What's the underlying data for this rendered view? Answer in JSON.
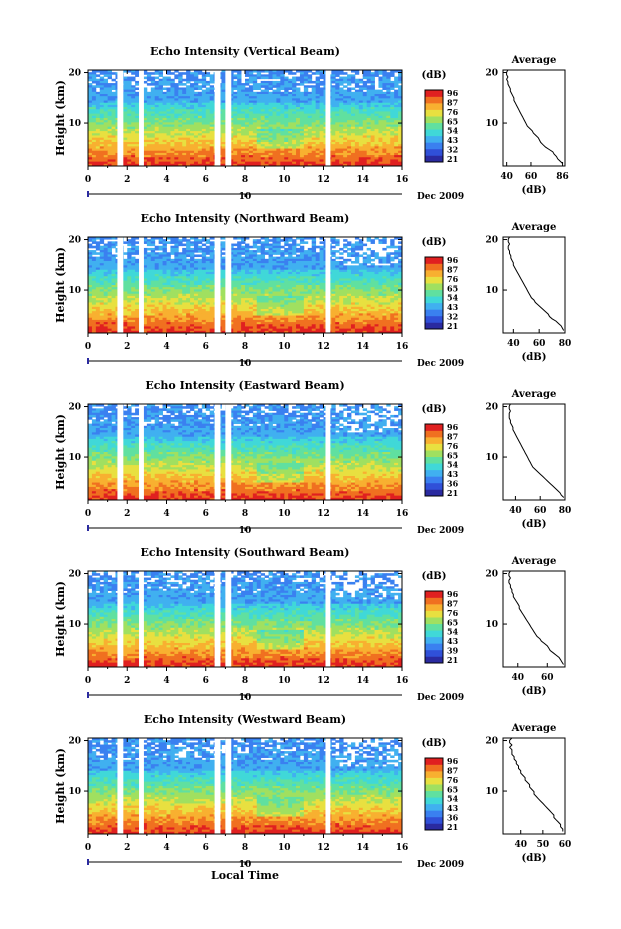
{
  "figure": {
    "xlabel": "Local Time",
    "date_label": "Dec 2009",
    "day_tick_label": "10",
    "colorbar_unit": "(dB)",
    "profile_title": "Average",
    "profile_xlabel": "(dB)"
  },
  "chart_data": [
    {
      "type": "heatmap",
      "title": "Echo Intensity (Vertical Beam)",
      "ylabel": "Height (km)",
      "xticks": [
        "0",
        "2",
        "4",
        "6",
        "8",
        "10",
        "12",
        "14",
        "16"
      ],
      "xlim": [
        0,
        16
      ],
      "yticks": [
        "10",
        "20"
      ],
      "ylim": [
        1.5,
        20.5
      ],
      "data_gaps_hours": [
        [
          1.5,
          1.8
        ],
        [
          2.6,
          2.85
        ],
        [
          6.45,
          6.75
        ],
        [
          7.0,
          7.3
        ],
        [
          12.1,
          12.35
        ]
      ],
      "colorbar_ticks": [
        "96",
        "87",
        "76",
        "65",
        "54",
        "43",
        "32",
        "21"
      ],
      "profile": {
        "title": "Average",
        "xlabel": "(dB)",
        "xticks": [
          "40",
          "60",
          "86"
        ],
        "xlim": [
          37,
          88
        ],
        "ylim": [
          1.5,
          20.5
        ],
        "yticks": [
          "10",
          "20"
        ],
        "values": [
          86,
          84,
          82,
          81,
          79,
          78,
          75,
          72,
          70,
          68,
          67,
          66,
          64,
          62,
          61,
          59,
          57,
          56,
          55,
          54,
          53,
          52,
          51,
          50,
          49,
          48,
          47,
          46,
          46,
          45,
          44,
          43,
          43,
          42,
          41,
          41,
          40,
          41,
          40,
          40,
          41
        ]
      }
    },
    {
      "type": "heatmap",
      "title": "Echo Intensity (Northward Beam)",
      "ylabel": "Height (km)",
      "xticks": [
        "0",
        "2",
        "4",
        "6",
        "8",
        "10",
        "12",
        "14",
        "16"
      ],
      "xlim": [
        0,
        16
      ],
      "yticks": [
        "10",
        "20"
      ],
      "ylim": [
        1.5,
        20.5
      ],
      "data_gaps_hours": [
        [
          1.5,
          1.8
        ],
        [
          2.6,
          2.85
        ],
        [
          6.45,
          6.75
        ],
        [
          7.0,
          7.3
        ],
        [
          12.1,
          12.35
        ]
      ],
      "colorbar_ticks": [
        "96",
        "87",
        "76",
        "65",
        "54",
        "43",
        "32",
        "21"
      ],
      "profile": {
        "title": "Average",
        "xlabel": "(dB)",
        "xticks": [
          "40",
          "60",
          "80"
        ],
        "xlim": [
          32,
          80
        ],
        "ylim": [
          1.5,
          20.5
        ],
        "yticks": [
          "10",
          "20"
        ],
        "values": [
          79,
          78,
          77,
          75,
          73,
          70,
          68,
          67,
          65,
          63,
          61,
          59,
          57,
          56,
          54,
          53,
          52,
          51,
          50,
          49,
          48,
          47,
          46,
          45,
          44,
          43,
          42,
          41,
          40,
          40,
          39,
          38,
          38,
          37,
          37,
          36,
          36,
          37,
          36,
          36,
          37
        ]
      }
    },
    {
      "type": "heatmap",
      "title": "Echo Intensity (Eastward Beam)",
      "ylabel": "Height (km)",
      "xticks": [
        "0",
        "2",
        "4",
        "6",
        "8",
        "10",
        "12",
        "14",
        "16"
      ],
      "xlim": [
        0,
        16
      ],
      "yticks": [
        "10",
        "20"
      ],
      "ylim": [
        1.5,
        20.5
      ],
      "data_gaps_hours": [
        [
          1.5,
          1.8
        ],
        [
          2.6,
          2.85
        ],
        [
          6.45,
          6.75
        ],
        [
          7.0,
          7.3
        ],
        [
          12.1,
          12.35
        ]
      ],
      "colorbar_ticks": [
        "96",
        "87",
        "76",
        "65",
        "54",
        "43",
        "36",
        "21"
      ],
      "profile": {
        "title": "Average",
        "xlabel": "(dB)",
        "xticks": [
          "40",
          "60",
          "80"
        ],
        "xlim": [
          30,
          80
        ],
        "ylim": [
          1.5,
          20.5
        ],
        "yticks": [
          "10",
          "20"
        ],
        "values": [
          79,
          77,
          76,
          74,
          72,
          70,
          68,
          66,
          64,
          62,
          60,
          58,
          56,
          54,
          53,
          52,
          51,
          50,
          49,
          48,
          47,
          46,
          45,
          44,
          43,
          42,
          41,
          40,
          39,
          38,
          38,
          37,
          36,
          36,
          35,
          35,
          35,
          36,
          35,
          35,
          36
        ]
      }
    },
    {
      "type": "heatmap",
      "title": "Echo Intensity (Southward Beam)",
      "ylabel": "Height (km)",
      "xticks": [
        "0",
        "2",
        "4",
        "6",
        "8",
        "10",
        "12",
        "14",
        "16"
      ],
      "xlim": [
        0,
        16
      ],
      "yticks": [
        "10",
        "20"
      ],
      "ylim": [
        1.5,
        20.5
      ],
      "data_gaps_hours": [
        [
          1.5,
          1.8
        ],
        [
          2.6,
          2.85
        ],
        [
          6.45,
          6.75
        ],
        [
          7.0,
          7.3
        ],
        [
          12.1,
          12.35
        ]
      ],
      "colorbar_ticks": [
        "96",
        "87",
        "76",
        "65",
        "54",
        "43",
        "39",
        "21"
      ],
      "profile": {
        "title": "Average",
        "xlabel": "(dB)",
        "xticks": [
          "40",
          "60"
        ],
        "xlim": [
          30,
          72
        ],
        "ylim": [
          1.5,
          20.5
        ],
        "yticks": [
          "10",
          "20"
        ],
        "values": [
          71,
          70,
          69,
          68,
          66,
          64,
          62,
          61,
          60,
          58,
          56,
          55,
          53,
          52,
          51,
          50,
          49,
          48,
          47,
          46,
          45,
          44,
          43,
          42,
          41,
          41,
          40,
          39,
          38,
          37,
          37,
          36,
          36,
          35,
          35,
          34,
          34,
          35,
          34,
          34,
          35
        ]
      }
    },
    {
      "type": "heatmap",
      "title": "Echo Intensity (Westward Beam)",
      "ylabel": "Height (km)",
      "xticks": [
        "0",
        "2",
        "4",
        "6",
        "8",
        "10",
        "12",
        "14",
        "16"
      ],
      "xlim": [
        0,
        16
      ],
      "yticks": [
        "10",
        "20"
      ],
      "ylim": [
        1.5,
        20.5
      ],
      "data_gaps_hours": [
        [
          1.5,
          1.8
        ],
        [
          2.6,
          2.85
        ],
        [
          6.45,
          6.75
        ],
        [
          7.0,
          7.3
        ],
        [
          12.1,
          12.35
        ]
      ],
      "colorbar_ticks": [
        "96",
        "87",
        "76",
        "65",
        "54",
        "43",
        "36",
        "21"
      ],
      "profile": {
        "title": "Average",
        "xlabel": "(dB)",
        "xticks": [
          "40",
          "50",
          "60"
        ],
        "xlim": [
          32,
          60
        ],
        "ylim": [
          1.5,
          20.5
        ],
        "yticks": [
          "10",
          "20"
        ],
        "values": [
          59,
          59,
          58,
          58,
          57,
          56,
          55,
          55,
          54,
          53,
          52,
          51,
          50,
          49,
          48,
          47,
          46,
          46,
          45,
          44,
          44,
          43,
          42,
          42,
          41,
          40,
          40,
          39,
          39,
          38,
          38,
          37,
          37,
          36,
          36,
          36,
          35,
          36,
          35,
          35,
          36
        ]
      }
    }
  ],
  "colors": {
    "colormap": [
      "#2a2aa0",
      "#3050d8",
      "#3a80f0",
      "#40b0f0",
      "#40d8d8",
      "#60e0a0",
      "#a0e060",
      "#e8e040",
      "#f8b030",
      "#f07020",
      "#e02020"
    ]
  }
}
